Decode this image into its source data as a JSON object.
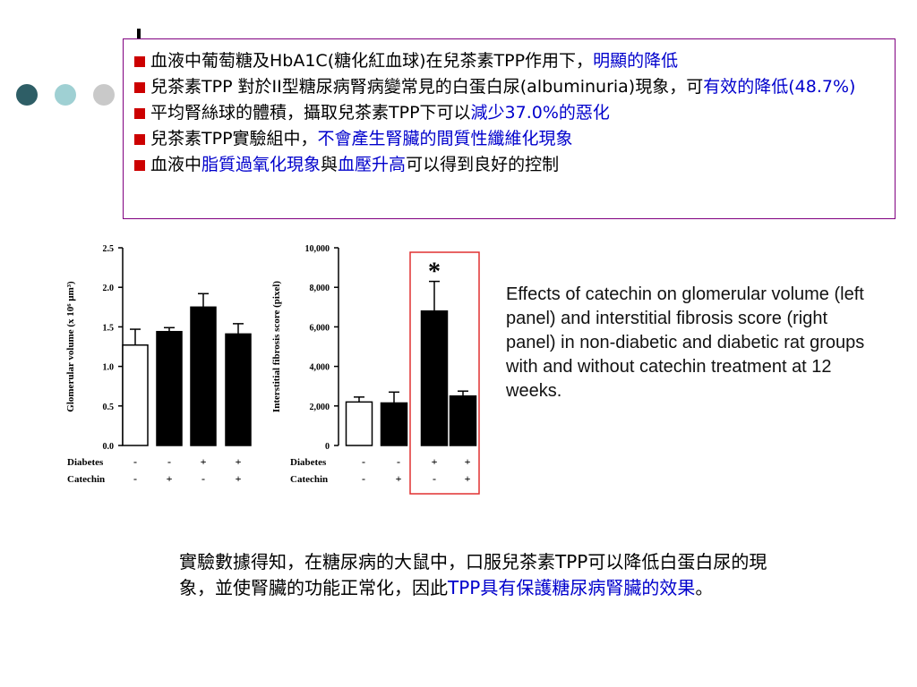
{
  "bullets": [
    [
      {
        "text": "血液中葡萄糖及HbA1C(糖化紅血球)在兒茶素TPP作用下，",
        "color": "#000000"
      },
      {
        "text": "明顯的降低",
        "color": "#0000cc"
      }
    ],
    [
      {
        "text": "兒茶素TPP 對於II型糖尿病腎病變常見的白蛋白尿(albuminuria)現象，可",
        "color": "#000000"
      },
      {
        "text": "有效的降低(48.7%)",
        "color": "#0000cc"
      }
    ],
    [
      {
        "text": "平均腎絲球的體積，攝取兒茶素TPP下可以",
        "color": "#000000"
      },
      {
        "text": "減少37.0%的惡化",
        "color": "#0000cc"
      }
    ],
    [
      {
        "text": "兒茶素TPP實驗組中，",
        "color": "#000000"
      },
      {
        "text": "不會產生腎臟的間質性纖維化現象",
        "color": "#0000cc"
      }
    ],
    [
      {
        "text": "血液中",
        "color": "#000000"
      },
      {
        "text": "脂質過氧化現象",
        "color": "#0000cc"
      },
      {
        "text": "與",
        "color": "#000000"
      },
      {
        "text": "血壓升高",
        "color": "#0000cc"
      },
      {
        "text": "可以得到良好的控制",
        "color": "#000000"
      }
    ]
  ],
  "chart_data": [
    {
      "type": "bar",
      "y_label": "Glomerular volume (x 10⁶ μm³)",
      "values": [
        1.27,
        1.44,
        1.75,
        1.41
      ],
      "errors": [
        0.2,
        0.05,
        0.17,
        0.13
      ],
      "colors": [
        "#ffffff",
        "#000000",
        "#000000",
        "#000000"
      ],
      "ylim": [
        0,
        2.5
      ],
      "yticks": [
        {
          "value": 0,
          "label": "0.0"
        },
        0.5,
        {
          "value": 1,
          "label": "1.0"
        },
        1.5,
        {
          "value": 2,
          "label": "2.0"
        },
        2.5
      ],
      "conditions": [
        {
          "name": "Diabetes",
          "values": [
            "-",
            "-",
            "+",
            "+"
          ]
        },
        {
          "name": "Catechin",
          "values": [
            "-",
            "+",
            "-",
            "+"
          ]
        }
      ]
    },
    {
      "type": "bar",
      "y_label": "Interstitial fibrosis score (pixel)",
      "values": [
        2200,
        2150,
        6800,
        2500
      ],
      "errors": [
        250,
        550,
        1500,
        250
      ],
      "colors": [
        "#ffffff",
        "#000000",
        "#000000",
        "#000000"
      ],
      "ylim": [
        0,
        10000
      ],
      "yticks": [
        0,
        {
          "value": 2000,
          "label": "2,000"
        },
        {
          "value": 4000,
          "label": "4,000"
        },
        {
          "value": 6000,
          "label": "6,000"
        },
        {
          "value": 8000,
          "label": "8,000"
        },
        {
          "value": 10000,
          "label": "10,000"
        }
      ],
      "annotation": "*",
      "conditions": [
        {
          "name": "Diabetes",
          "values": [
            "-",
            "-",
            "+",
            "+"
          ]
        },
        {
          "name": "Catechin",
          "values": [
            "-",
            "+",
            "-",
            "+"
          ]
        }
      ]
    }
  ],
  "caption": "Effects of catechin on glomerular volume (left panel) and interstitial fibrosis score (right panel) in non-diabetic and diabetic rat groups with and without catechin treatment at 12 weeks.",
  "conclusion": [
    {
      "text": "實驗數據得知，在糖尿病的大鼠中，口服兒茶素TPP可以降低白蛋白尿的現象，並使腎臟的功能正常化，因此",
      "color": "#000000"
    },
    {
      "text": "TPP具有保護糖尿病腎臟的效果",
      "color": "#0000cc"
    },
    {
      "text": "。",
      "color": "#000000"
    }
  ]
}
